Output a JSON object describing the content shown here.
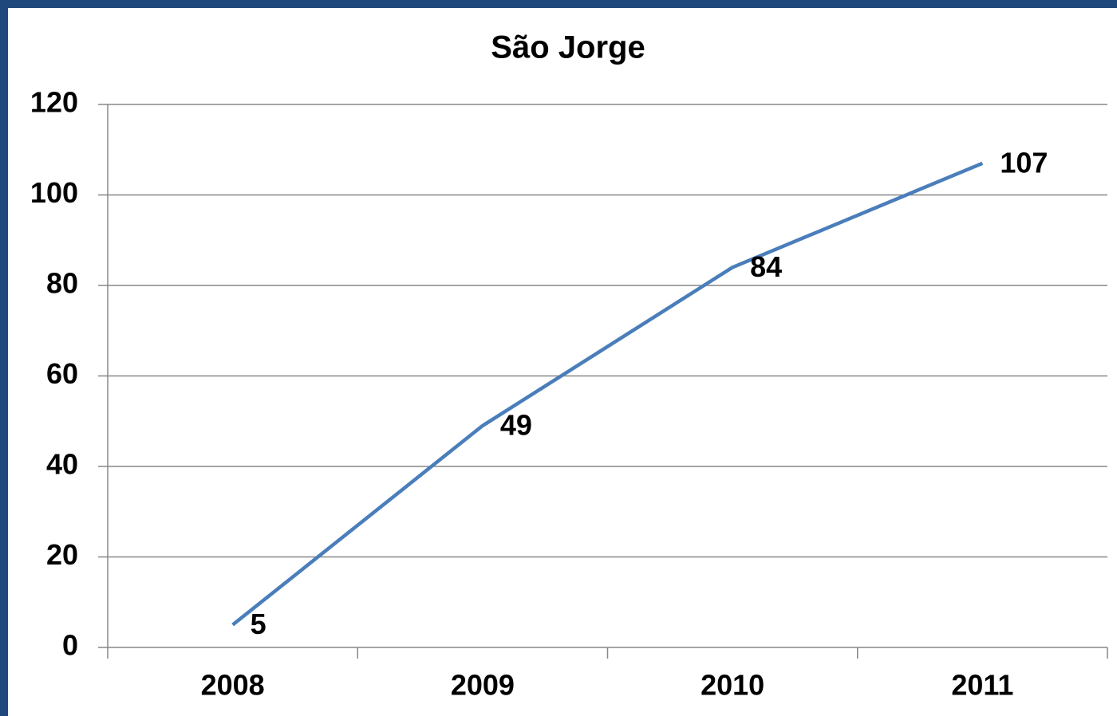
{
  "chart_data": {
    "type": "line",
    "title": "São Jorge",
    "categories": [
      "2008",
      "2009",
      "2010",
      "2011"
    ],
    "values": [
      5,
      49,
      84,
      107
    ],
    "color": "#4a7ebb",
    "ylim": [
      0,
      120
    ],
    "yticks": [
      0,
      20,
      40,
      60,
      80,
      100,
      120
    ],
    "grid": true
  }
}
